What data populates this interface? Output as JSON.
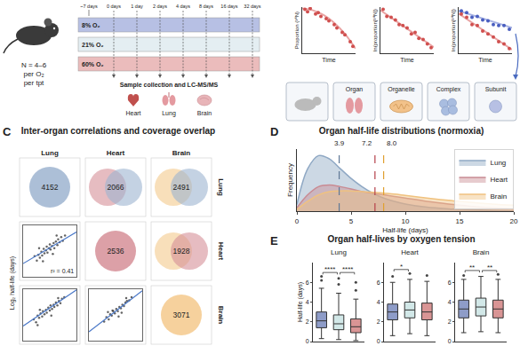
{
  "diagram": {
    "A": {
      "cohort": [
        "N = 4–6",
        "per O₂",
        "per tpt"
      ],
      "acclimation": "~7 days",
      "timepoints": [
        "0 days",
        "1 day",
        "2 days",
        "4 days",
        "8 days",
        "16 days",
        "32 days"
      ],
      "conditions": [
        {
          "label": "8% O₂",
          "color": "#b7c0e4"
        },
        {
          "label": "21% O₂",
          "color": "#e4eef2"
        },
        {
          "label": "60% O₂",
          "color": "#ebbcbc"
        }
      ],
      "collection": "Sample collection and LC-MS/MS",
      "organs": [
        "Heart",
        "Lung",
        "Brain"
      ]
    },
    "B": {
      "plots": [
        {
          "x_label": "Time",
          "y_label": "Proportion (¹⁴N)",
          "xlim": [
            0,
            1
          ],
          "ylim": [
            0,
            1
          ],
          "tick_labels": false,
          "series": [
            {
              "color": "#d0504f",
              "marker": "circle",
              "x": [
                0.05,
                0.1,
                0.15,
                0.25,
                0.3,
                0.35,
                0.45,
                0.5,
                0.6,
                0.65,
                0.75,
                0.8,
                0.9,
                0.95
              ],
              "values": [
                0.95,
                0.9,
                0.97,
                0.85,
                0.88,
                0.8,
                0.75,
                0.7,
                0.62,
                0.55,
                0.45,
                0.4,
                0.25,
                0.15
              ]
            }
          ],
          "fits": [
            {
              "color": "#e9a3a3",
              "x": [
                0,
                0.2,
                0.4,
                0.6,
                0.8,
                1
              ],
              "values": [
                0.97,
                0.93,
                0.83,
                0.66,
                0.42,
                0.1
              ]
            }
          ]
        },
        {
          "x_label": "Time",
          "y_label": "ln(proportion[¹⁴N])",
          "xlim": [
            0,
            1
          ],
          "ylim": [
            0,
            1
          ],
          "tick_labels": false,
          "series": [
            {
              "color": "#d0504f",
              "marker": "circle",
              "x": [
                0.05,
                0.12,
                0.2,
                0.28,
                0.35,
                0.42,
                0.5,
                0.58,
                0.65,
                0.72,
                0.8,
                0.88,
                0.95
              ],
              "values": [
                0.95,
                0.8,
                0.78,
                0.72,
                0.62,
                0.6,
                0.55,
                0.42,
                0.45,
                0.32,
                0.3,
                0.2,
                0.12
              ]
            }
          ],
          "fits": [
            {
              "color": "#e9a3a3",
              "x": [
                0,
                1
              ],
              "values": [
                0.93,
                0.13
              ]
            }
          ]
        },
        {
          "x_label": "Time",
          "y_label": "ln(proportion[¹⁴N])",
          "xlim": [
            0,
            1
          ],
          "ylim": [
            0,
            1
          ],
          "tick_labels": false,
          "series": [
            {
              "color": "#4a5fc0",
              "marker": "circle",
              "x": [
                0.05,
                0.15,
                0.25,
                0.35,
                0.45,
                0.55,
                0.65,
                0.75,
                0.85,
                0.95
              ],
              "values": [
                0.92,
                0.88,
                0.78,
                0.8,
                0.72,
                0.7,
                0.62,
                0.6,
                0.6,
                0.52
              ]
            },
            {
              "color": "#d0504f",
              "marker": "circle",
              "x": [
                0.05,
                0.15,
                0.25,
                0.35,
                0.45,
                0.55,
                0.65,
                0.75,
                0.85,
                0.95
              ],
              "values": [
                0.85,
                0.78,
                0.62,
                0.6,
                0.48,
                0.42,
                0.35,
                0.25,
                0.2,
                0.1
              ]
            }
          ],
          "fits": [
            {
              "color": "#a9b4e4",
              "x": [
                0,
                1
              ],
              "values": [
                0.92,
                0.55
              ]
            },
            {
              "color": "#e9a3a3",
              "x": [
                0,
                1
              ],
              "values": [
                0.86,
                0.08
              ]
            }
          ]
        }
      ],
      "levels": [
        "Organ",
        "Organelle",
        "Complex",
        "Subunit"
      ]
    },
    "C": {
      "label": "C",
      "title": "Inter-organ correlations and coverage overlap",
      "organs": [
        "Lung",
        "Heart",
        "Brain"
      ],
      "colors": [
        "#9db4d0",
        "#d68f98",
        "#f4c98c"
      ],
      "counts": [
        [
          4152,
          2066,
          2491
        ],
        [
          null,
          2536,
          1928
        ],
        [
          null,
          null,
          3071
        ]
      ],
      "y_label": "Log₂ half-life (days)",
      "scatter": [
        {
          "row": "Heart",
          "col": "Lung",
          "xlim": [
            -1,
            6
          ],
          "ylim": [
            -1,
            6
          ],
          "tick_labels": false,
          "x": [
            0.5,
            0.8,
            1.0,
            1.2,
            1.4,
            1.5,
            1.7,
            1.8,
            2.0,
            2.1,
            2.2,
            2.4,
            2.5,
            2.6,
            2.8,
            3.0,
            3.1,
            3.3,
            3.5,
            3.6,
            3.8,
            4.0,
            4.2,
            4.5,
            1.1,
            2.9,
            3.4,
            1.6
          ],
          "y": [
            1.8,
            1.2,
            2.0,
            1.6,
            2.4,
            1.9,
            2.8,
            2.2,
            2.6,
            3.1,
            2.3,
            2.9,
            3.4,
            2.7,
            3.2,
            3.6,
            2.9,
            3.8,
            3.3,
            4.1,
            3.7,
            4.4,
            3.9,
            4.6,
            2.9,
            2.1,
            4.6,
            1.1
          ],
          "fit": {
            "x": [
              -1,
              6
            ],
            "values": [
              0.8,
              5.1
            ]
          },
          "annotation": "r² = 0.41"
        },
        {
          "row": "Brain",
          "col": "Lung",
          "xlim": [
            -1,
            6
          ],
          "ylim": [
            -1,
            6
          ],
          "tick_labels": false,
          "x": [
            0.4,
            0.7,
            0.9,
            1.1,
            1.3,
            1.5,
            1.6,
            1.8,
            2.0,
            2.1,
            2.3,
            2.5,
            2.6,
            2.8,
            3.0,
            3.1,
            3.3,
            3.5,
            3.7,
            3.9,
            4.1,
            4.4,
            1.2,
            2.7,
            3.6,
            0.9
          ],
          "y": [
            1.9,
            1.5,
            2.4,
            2.1,
            2.7,
            2.3,
            3.0,
            2.6,
            3.2,
            2.8,
            3.5,
            3.1,
            3.8,
            3.3,
            3.9,
            3.6,
            4.2,
            3.8,
            4.4,
            4.1,
            4.7,
            4.9,
            3.2,
            2.4,
            4.8,
            1.1
          ],
          "fit": {
            "x": [
              -1,
              6
            ],
            "values": [
              1.0,
              5.9
            ]
          }
        },
        {
          "row": "Brain",
          "col": "Heart",
          "xlim": [
            -1,
            6
          ],
          "ylim": [
            -1,
            6
          ],
          "tick_labels": false,
          "x": [
            1.0,
            1.3,
            1.6,
            1.8,
            2.0,
            2.2,
            2.4,
            2.6,
            2.8,
            3.0,
            3.2,
            3.4,
            3.6,
            3.8,
            4.0,
            4.3,
            4.6,
            1.5,
            2.9,
            3.9,
            2.1,
            3.3
          ],
          "y": [
            1.6,
            2.2,
            1.9,
            2.6,
            2.4,
            3.0,
            2.7,
            3.3,
            3.0,
            3.6,
            3.4,
            3.9,
            3.7,
            4.2,
            4.4,
            4.5,
            4.9,
            2.9,
            2.3,
            4.8,
            3.1,
            2.8
          ],
          "fit": {
            "x": [
              -1,
              6
            ],
            "values": [
              0.2,
              5.8
            ]
          }
        }
      ]
    },
    "D": {
      "label": "D"
    },
    "E": {
      "label": "E"
    }
  },
  "chart_data": [
    {
      "type": "line",
      "title": "Organ half-life distributions (normoxia)",
      "x_label": "Half-life (days)",
      "y_label": "Frequency",
      "x": [
        0,
        1,
        2,
        3,
        4,
        5,
        6,
        7,
        8,
        9,
        10,
        12,
        14,
        16,
        18,
        20
      ],
      "series": [
        {
          "name": "Lung",
          "color": "#8fa8c4",
          "values": [
            0.02,
            0.13,
            0.17,
            0.16,
            0.13,
            0.1,
            0.075,
            0.055,
            0.04,
            0.03,
            0.022,
            0.012,
            0.007,
            0.004,
            0.002,
            0.001
          ]
        },
        {
          "name": "Heart",
          "color": "#c98b93",
          "values": [
            0.01,
            0.05,
            0.075,
            0.08,
            0.075,
            0.068,
            0.06,
            0.055,
            0.05,
            0.045,
            0.04,
            0.03,
            0.022,
            0.015,
            0.01,
            0.007
          ]
        },
        {
          "name": "Brain",
          "color": "#f0c27f",
          "values": [
            0.005,
            0.03,
            0.05,
            0.06,
            0.062,
            0.062,
            0.06,
            0.058,
            0.055,
            0.052,
            0.048,
            0.04,
            0.033,
            0.027,
            0.022,
            0.018
          ]
        }
      ],
      "markers": [
        {
          "value": 3.9,
          "label": "3.9",
          "color": "#5f7896"
        },
        {
          "value": 7.2,
          "label": "7.2",
          "color": "#b5404a"
        },
        {
          "value": 8.0,
          "label": "8.0",
          "color": "#e0a030"
        }
      ],
      "xlim": [
        0,
        20
      ],
      "xticks": [
        0,
        5,
        10,
        15,
        20
      ],
      "ylim": [
        0,
        0.19
      ],
      "tick_labels": "x",
      "legend": "top-right",
      "grid": false
    },
    {
      "type": "box",
      "title": "Organ half-lives by oxygen tension",
      "y_label": "Half-life (days)",
      "ylim": [
        0,
        8
      ],
      "yticks": [
        0,
        2,
        4,
        6
      ],
      "tick_labels": "y",
      "grid": false,
      "colors": [
        "#8e9cc8",
        "#d2e8e8",
        "#d99595"
      ],
      "panels": [
        {
          "title": "Lung",
          "boxes": [
            {
              "lowerfence": 0.3,
              "q1": 1.4,
              "median": 2.1,
              "q3": 3.0,
              "upperfence": 5.4,
              "outliers": [
                6.2,
                6.6
              ]
            },
            {
              "lowerfence": 0.2,
              "q1": 1.2,
              "median": 1.8,
              "q3": 2.7,
              "upperfence": 4.9,
              "outliers": [
                5.8,
                6.4
              ]
            },
            {
              "lowerfence": 0.1,
              "q1": 0.9,
              "median": 1.5,
              "q3": 2.3,
              "upperfence": 4.3,
              "outliers": [
                5.2,
                6.0
              ]
            }
          ],
          "comparisons": [
            {
              "pair": [
                "8% O₂",
                "21% O₂"
              ],
              "label": "****"
            },
            {
              "pair": [
                "21% O₂",
                "60% O₂"
              ],
              "label": "****"
            }
          ]
        },
        {
          "title": "Heart",
          "boxes": [
            {
              "lowerfence": 0.6,
              "q1": 2.2,
              "median": 3.0,
              "q3": 3.8,
              "upperfence": 6.0,
              "outliers": [
                6.6
              ]
            },
            {
              "lowerfence": 0.8,
              "q1": 2.4,
              "median": 3.2,
              "q3": 4.0,
              "upperfence": 6.3,
              "outliers": [
                6.9
              ]
            },
            {
              "lowerfence": 0.6,
              "q1": 2.2,
              "median": 3.0,
              "q3": 3.9,
              "upperfence": 6.1,
              "outliers": [
                6.7
              ]
            }
          ],
          "comparisons": [
            {
              "pair": [
                "8% O₂",
                "21% O₂"
              ],
              "label": "*"
            }
          ]
        },
        {
          "title": "Brain",
          "boxes": [
            {
              "lowerfence": 0.9,
              "q1": 2.4,
              "median": 3.3,
              "q3": 4.2,
              "upperfence": 6.3,
              "outliers": [
                6.7
              ]
            },
            {
              "lowerfence": 1.0,
              "q1": 2.6,
              "median": 3.5,
              "q3": 4.4,
              "upperfence": 6.6,
              "outliers": []
            },
            {
              "lowerfence": 0.9,
              "q1": 2.4,
              "median": 3.3,
              "q3": 4.2,
              "upperfence": 6.3,
              "outliers": [
                6.8
              ]
            }
          ],
          "comparisons": [
            {
              "pair": [
                "8% O₂",
                "21% O₂"
              ],
              "label": "**"
            },
            {
              "pair": [
                "21% O₂",
                "60% O₂"
              ],
              "label": "**"
            }
          ]
        }
      ]
    }
  ]
}
